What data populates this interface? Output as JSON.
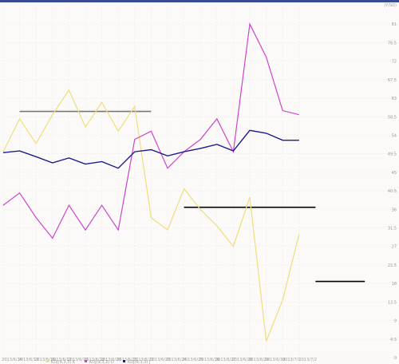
{
  "chart_data": {
    "type": "line",
    "unit_label": "(Y/SD)",
    "ylim": [
      0,
      85.5
    ],
    "y_ticks": [
      "0",
      "4.5",
      "9",
      "13.5",
      "18",
      "22.5",
      "27",
      "31.5",
      "36",
      "40.5",
      "45",
      "49.5",
      "54",
      "58.5",
      "63",
      "67.5",
      "72",
      "76.5",
      "81"
    ],
    "categories": [
      "2013/6/14",
      "2013/6/13",
      "2013/6/16",
      "2013/6/17",
      "2013/6/18",
      "2013/6/19",
      "2013/6/20",
      "2013/6/21",
      "2013/6/22",
      "2013/6/23",
      "2013/6/24",
      "2013/6/25",
      "2013/6/26",
      "2013/6/27",
      "2013/6/28",
      "2013/6/29",
      "2013/6/30",
      "2013/7/1",
      "2013/7/2"
    ],
    "legend": [
      "KDJ(9,3,3) K",
      "KDJ(9,3,3) D",
      "KDJ(9,3,3) J"
    ],
    "series": [
      {
        "name": "KDJ(9,3,3) K",
        "color": "#f0de7a",
        "values": [
          50,
          58,
          52,
          59,
          65,
          56,
          62,
          55,
          61,
          34,
          31,
          41,
          36,
          32,
          27,
          39,
          4,
          14,
          30
        ]
      },
      {
        "name": "KDJ(9,3,3) D",
        "color": "#cc44cc",
        "values": [
          37,
          40,
          34,
          29,
          37,
          31,
          37,
          31,
          53,
          55,
          46,
          50,
          53,
          58,
          50,
          81,
          73,
          60,
          59
        ]
      },
      {
        "name": "KDJ(9,3,3) J",
        "color": "#1c1c8a",
        "values": [
          49.8,
          50.2,
          48.8,
          47.3,
          48.5,
          47.0,
          47.6,
          46.0,
          50.0,
          50.5,
          49.0,
          50.0,
          50.8,
          51.8,
          50.2,
          55.2,
          54.5,
          52.8,
          52.8
        ]
      }
    ],
    "reference_segments": [
      {
        "x_start": 1,
        "x_end": 9,
        "y": 59.8,
        "color": "#777777"
      },
      {
        "x_start": 11,
        "x_end": 19,
        "y": 36.5,
        "color": "#000000"
      },
      {
        "x_start": 19,
        "x_end": 22,
        "y": 18.5,
        "color": "#000000"
      }
    ]
  }
}
